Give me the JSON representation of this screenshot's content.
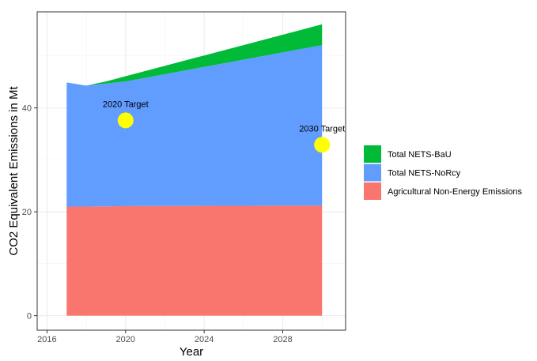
{
  "chart_data": {
    "type": "area",
    "title": "",
    "xlabel": "Year",
    "ylabel": "CO2 Equivalent Emissions in Mt",
    "xlim": [
      2015.5,
      2031.2
    ],
    "ylim": [
      -2.8,
      58.5
    ],
    "x_ticks": [
      2016,
      2020,
      2024,
      2028
    ],
    "y_ticks": [
      0,
      20,
      40
    ],
    "grid": true,
    "legend_position": "right",
    "stacked": true,
    "x": [
      2017,
      2018,
      2019,
      2020,
      2030
    ],
    "series": [
      {
        "name": "Agricultural Non-Energy Emissions",
        "color": "#F8766D",
        "values": [
          21.0,
          21.0,
          21.05,
          21.1,
          21.2
        ]
      },
      {
        "name": "Total NETS-NoRcy",
        "color": "#619CFF",
        "values": [
          23.9,
          23.3,
          23.65,
          24.0,
          30.9
        ]
      },
      {
        "name": "Total NETS-BaU",
        "color": "#00BA38",
        "values": [
          0,
          0,
          0.4,
          1.0,
          4.0
        ]
      }
    ],
    "legend_order": [
      "Total NETS-BaU",
      "Total NETS-NoRcy",
      "Agricultural Non-Energy Emissions"
    ],
    "annotations": [
      {
        "label": "2020 Target",
        "x": 2020,
        "y": 37.6,
        "color": "#FFFF00"
      },
      {
        "label": "2030 Target",
        "x": 2030,
        "y": 32.9,
        "color": "#FFFF00"
      }
    ]
  }
}
